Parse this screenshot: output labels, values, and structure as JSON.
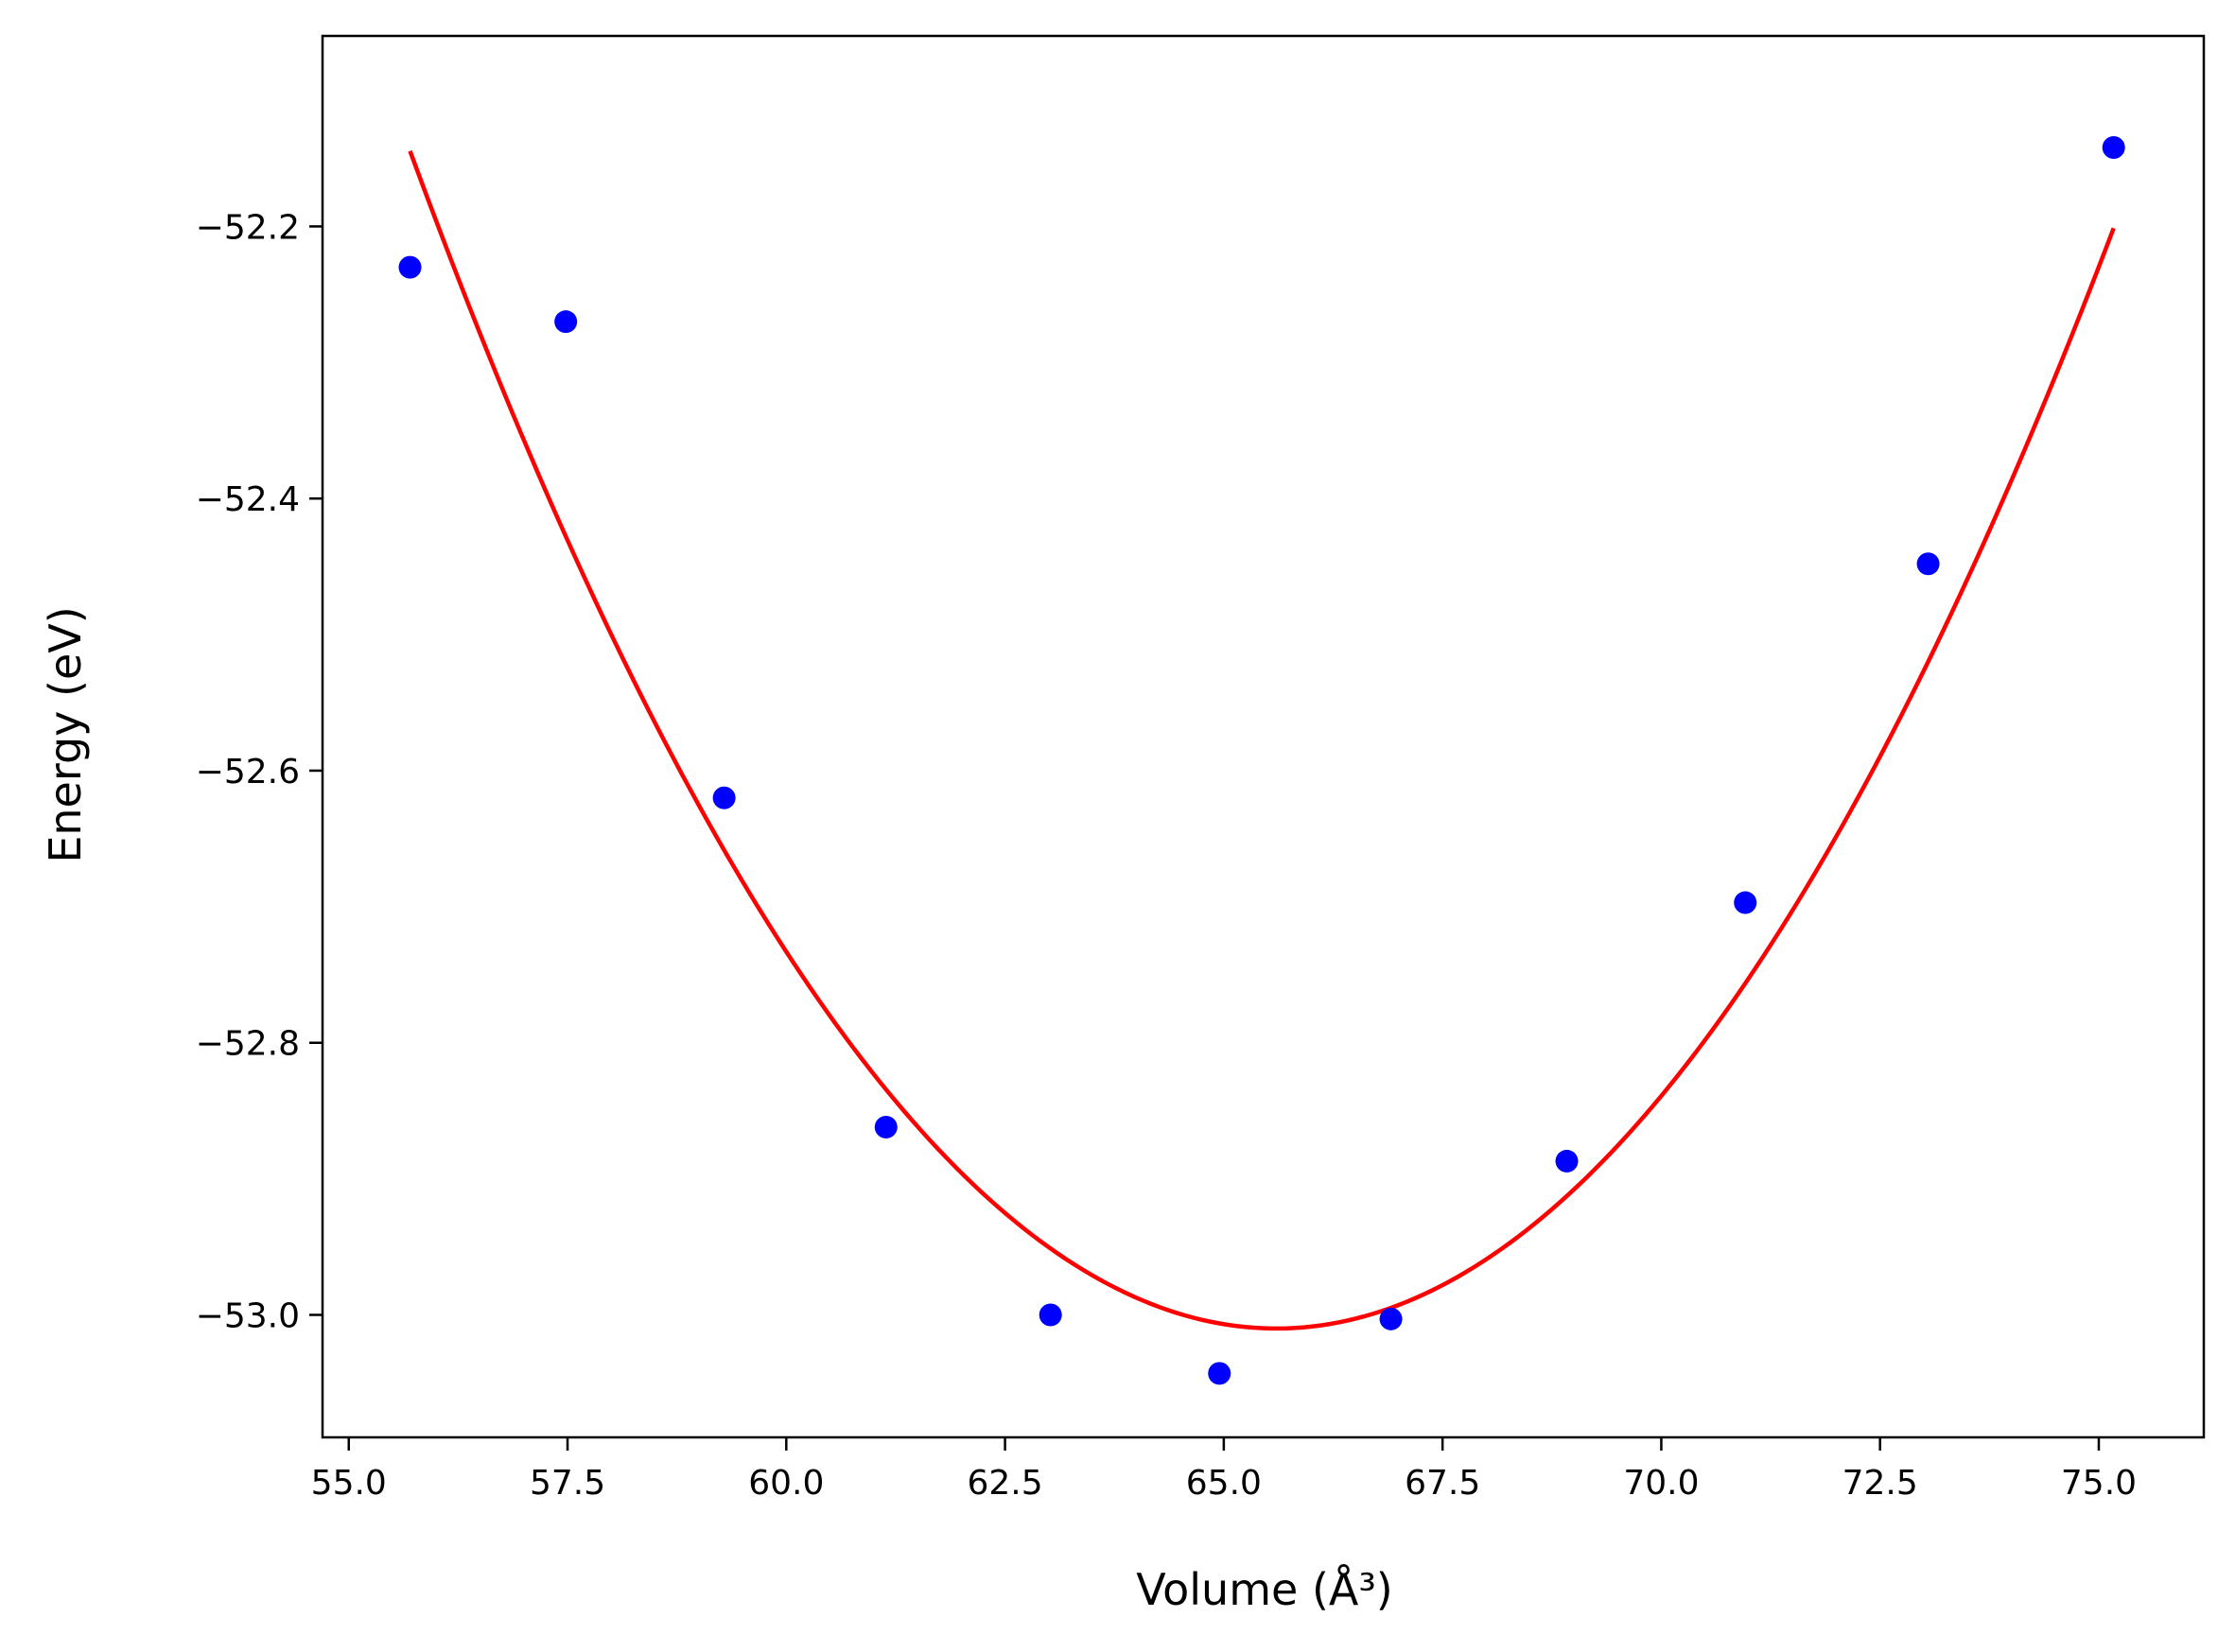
{
  "chart_data": {
    "type": "scatter",
    "title": "",
    "xlabel": "Volume (Å³)",
    "ylabel": "Energy (eV)",
    "xlim": [
      54.7,
      76.2
    ],
    "ylim": [
      -53.09,
      -52.06
    ],
    "x_ticks": [
      55.0,
      57.5,
      60.0,
      62.5,
      65.0,
      67.5,
      70.0,
      72.5,
      75.0
    ],
    "x_tick_labels": [
      "55.0",
      "57.5",
      "60.0",
      "62.5",
      "65.0",
      "67.5",
      "70.0",
      "72.5",
      "75.0"
    ],
    "y_ticks": [
      -53.0,
      -52.8,
      -52.6,
      -52.4,
      -52.2
    ],
    "y_tick_labels": [
      "−53.0",
      "−52.8",
      "−52.6",
      "−52.4",
      "−52.2"
    ],
    "grid": false,
    "legend": "none",
    "series": [
      {
        "kind": "scatter",
        "color": "#0000ff",
        "x": [
          55.7,
          57.48,
          59.29,
          61.14,
          63.02,
          64.95,
          66.91,
          68.92,
          70.96,
          73.05,
          75.17
        ],
        "y": [
          -52.23,
          -52.27,
          -52.62,
          -52.862,
          -53.0,
          -53.043,
          -53.003,
          -52.887,
          -52.697,
          -52.448,
          -52.142
        ]
      },
      {
        "kind": "line",
        "color": "#ff0000",
        "fit": "quadratic",
        "x_range": [
          55.7,
          75.17
        ],
        "vertex": [
          65.6,
          -53.01
        ],
        "coefficient": 0.00883
      }
    ]
  }
}
